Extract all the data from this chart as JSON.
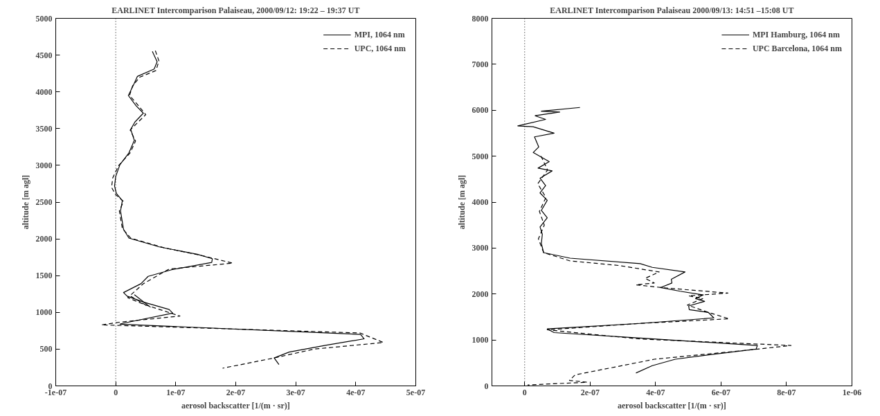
{
  "chart_data": [
    {
      "type": "line",
      "title": "EARLINET Intercomparison Palaiseau, 2000/09/12: 19:22 – 19:37 UT",
      "xlabel": "aerosol backscatter [1/(m · sr)]",
      "ylabel": "altitude [m agl]",
      "xlim": [
        -1e-07,
        5e-07
      ],
      "xticks": [
        {
          "value": -1e-07,
          "label": "-1e-07"
        },
        0,
        {
          "value": 1e-07,
          "label": "1e-07"
        },
        {
          "value": 2e-07,
          "label": "2e-07"
        },
        {
          "value": 3e-07,
          "label": "3e-07"
        },
        {
          "value": 4e-07,
          "label": "4e-07"
        },
        {
          "value": 5e-07,
          "label": "5e-07"
        }
      ],
      "ylim": [
        0,
        5000
      ],
      "yticks": [
        0,
        500,
        1000,
        1500,
        2000,
        2500,
        3000,
        3500,
        4000,
        4500,
        5000
      ],
      "grid": false,
      "legend": "top right",
      "marker": "none",
      "ref_lines": [
        {
          "axis": "x",
          "value": 0,
          "line_style": "dotted",
          "color": "#000000"
        }
      ],
      "series": [
        {
          "name": "MPI, 1064 nm",
          "color": "#000000",
          "line_style": "solid",
          "x": [
            6.1e-08,
            6.9e-08,
            6.4e-08,
            3.6e-08,
            3e-08,
            2.1e-08,
            3.4e-08,
            4.6e-08,
            3.2e-08,
            2.5e-08,
            3.1e-08,
            2.2e-08,
            7e-09,
            0.0,
            -2e-09,
            1e-09,
            1.1e-08,
            8e-09,
            1.3e-08,
            2.2e-08,
            7.3e-08,
            1.36e-07,
            1.61e-07,
            1.6e-07,
            9.3e-08,
            5.4e-08,
            4.2e-08,
            1.3e-08,
            1.9e-08,
            4.6e-08,
            8.9e-08,
            9.5e-08,
            1.1e-08,
            7e-09,
            4.08e-07,
            4.14e-07,
            3.48e-07,
            2.89e-07,
            2.64e-07,
            2.72e-07
          ],
          "values": [
            4550,
            4410,
            4310,
            4210,
            4100,
            3950,
            3810,
            3710,
            3590,
            3490,
            3340,
            3170,
            3010,
            2850,
            2720,
            2620,
            2520,
            2380,
            2130,
            2010,
            1890,
            1790,
            1730,
            1680,
            1580,
            1490,
            1390,
            1270,
            1220,
            1140,
            1040,
            990,
            850,
            840,
            700,
            640,
            550,
            460,
            380,
            290
          ]
        },
        {
          "name": "UPC, 1064 nm",
          "color": "#000000",
          "line_style": "dashed",
          "x": [
            6.6e-08,
            7.2e-08,
            6.7e-08,
            4e-08,
            2.8e-08,
            2.3e-08,
            3.7e-08,
            5e-08,
            3.5e-08,
            2.4e-08,
            3.3e-08,
            2.4e-08,
            5e-09,
            -5e-09,
            -7e-09,
            0.0,
            1.3e-08,
            6e-09,
            1.1e-08,
            2.5e-08,
            8e-08,
            1.45e-07,
            1.95e-07,
            8.9e-08,
            4.6e-08,
            2e-08,
            5e-08,
            1.07e-07,
            1e-08,
            -2.4e-08,
            4.07e-07,
            4.46e-07,
            3.3e-07,
            2.64e-07,
            1.78e-07
          ],
          "values": [
            4560,
            4420,
            4290,
            4200,
            4080,
            3950,
            3820,
            3690,
            3570,
            3480,
            3330,
            3170,
            3000,
            2830,
            2700,
            2600,
            2510,
            2380,
            2140,
            2010,
            1880,
            1770,
            1670,
            1590,
            1390,
            1200,
            1100,
            950,
            870,
            830,
            720,
            590,
            500,
            380,
            240
          ]
        },
        {
          "color": "#000000",
          "line_style": "solid",
          "x": [
            3.1e-08,
            5.8e-08
          ],
          "values": [
            1240,
            1070
          ]
        },
        {
          "color": "#000000",
          "line_style": "dashed",
          "x": [
            2.5e-08,
            5.2e-08
          ],
          "values": [
            1220,
            1090
          ]
        }
      ]
    },
    {
      "type": "line",
      "title": "EARLINET Intercomparison Palaiseau 2000/09/13: 14:51 –15:08 UT",
      "xlabel": "aerosol backscatter [1/(m · sr)]",
      "ylabel": "altitude [m agl]",
      "xlim": [
        -1e-07,
        1e-06
      ],
      "xticks": [
        0,
        {
          "value": 2e-07,
          "label": "2e-07"
        },
        {
          "value": 4e-07,
          "label": "4e-07"
        },
        {
          "value": 6e-07,
          "label": "6e-07"
        },
        {
          "value": 8e-07,
          "label": "8e-07"
        },
        {
          "value": 1e-06,
          "label": "1e-06"
        }
      ],
      "ylim": [
        0,
        8000
      ],
      "yticks": [
        0,
        1000,
        2000,
        3000,
        4000,
        5000,
        6000,
        7000,
        8000
      ],
      "grid": false,
      "legend": "top right",
      "marker": "none",
      "ref_lines": [
        {
          "axis": "x",
          "value": 0,
          "line_style": "dotted",
          "color": "#000000"
        }
      ],
      "series": [
        {
          "name": "MPI Hamburg, 1064 nm",
          "color": "#000000",
          "line_style": "solid",
          "x": [
            1.69e-07,
            5.1e-08,
            1.07e-07,
            3.2e-08,
            6.4e-08,
            -2.1e-08,
            2.6e-08,
            9e-08,
            3e-08,
            4.3e-08,
            2.6e-08,
            7.5e-08,
            4.1e-08,
            8.4e-08,
            4.7e-08,
            6.4e-08,
            4.7e-08,
            6.9e-08,
            5.1e-08,
            6.9e-08,
            4.7e-08,
            5.4e-08,
            5.1e-08,
            5.8e-08,
            1.39e-07,
            3.53e-07,
            3.9e-07,
            4.9e-07,
            4.48e-07,
            4.5e-07,
            4.15e-07,
            4.75e-07,
            5.46e-07,
            5.22e-07,
            5.5e-07,
            5.01e-07,
            5.03e-07,
            5.61e-07,
            5.78e-07,
            3.53e-07,
            6.9e-08,
            9e-08,
            3.53e-07,
            7.11e-07,
            7.07e-07,
            5.67e-07,
            4.6e-07,
            3.9e-07,
            3.4e-07
          ],
          "values": [
            6060,
            5980,
            5960,
            5880,
            5800,
            5660,
            5640,
            5500,
            5420,
            5200,
            5080,
            4880,
            4740,
            4680,
            4520,
            4360,
            4200,
            4040,
            3820,
            3660,
            3460,
            3300,
            3100,
            2900,
            2780,
            2660,
            2580,
            2480,
            2320,
            2240,
            2140,
            2060,
            1980,
            1900,
            1840,
            1740,
            1660,
            1600,
            1480,
            1360,
            1240,
            1160,
            1040,
            880,
            800,
            680,
            580,
            440,
            280
          ]
        },
        {
          "name": "UPC Barcelona, 1064 nm",
          "color": "#000000",
          "line_style": "dashed",
          "x": [
            5e-08,
            7e-08,
            4e-08,
            6.5e-08,
            4.5e-08,
            6e-08,
            4.2e-08,
            5.8e-08,
            1.39e-07,
            2.89e-07,
            4.11e-07,
            3.68e-07,
            3.96e-07,
            3.4e-07,
            4.18e-07,
            6.21e-07,
            5.01e-07,
            5.44e-07,
            4.97e-07,
            5.61e-07,
            6.25e-07,
            3.53e-07,
            6.9e-08,
            3.53e-07,
            8.14e-07,
            7.11e-07,
            3.96e-07,
            2.83e-07,
            1.54e-07,
            1.37e-07,
            1.91e-07,
            9e-09
          ],
          "values": [
            5000,
            4700,
            4400,
            4100,
            3800,
            3500,
            3200,
            2900,
            2720,
            2620,
            2480,
            2340,
            2240,
            2200,
            2140,
            2020,
            1960,
            1900,
            1760,
            1600,
            1460,
            1360,
            1220,
            1020,
            880,
            800,
            580,
            420,
            240,
            120,
            80,
            20
          ]
        }
      ]
    }
  ]
}
